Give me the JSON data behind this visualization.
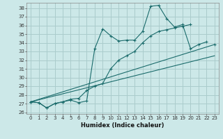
{
  "xlabel": "Humidex (Indice chaleur)",
  "bg_color": "#cce8e8",
  "grid_color": "#aacccc",
  "line_color": "#1a6b6b",
  "xlim": [
    -0.5,
    23.5
  ],
  "ylim": [
    25.8,
    38.6
  ],
  "xticks": [
    0,
    1,
    2,
    3,
    4,
    5,
    6,
    7,
    8,
    9,
    10,
    11,
    12,
    13,
    14,
    15,
    16,
    17,
    18,
    19,
    20,
    21,
    22,
    23
  ],
  "yticks": [
    26,
    27,
    28,
    29,
    30,
    31,
    32,
    33,
    34,
    35,
    36,
    37,
    38
  ],
  "series": [
    {
      "x": [
        0,
        1,
        2,
        3,
        4,
        5,
        6,
        7,
        8,
        9,
        10,
        11,
        12,
        13,
        14,
        15,
        16,
        17,
        18,
        19,
        20,
        21,
        22
      ],
      "y": [
        27.2,
        27.1,
        26.5,
        27.0,
        27.2,
        27.4,
        27.1,
        27.3,
        33.3,
        35.6,
        34.8,
        34.2,
        34.3,
        34.3,
        35.3,
        38.2,
        38.3,
        36.8,
        35.8,
        36.1,
        33.3,
        33.8,
        34.1
      ],
      "marker": true
    },
    {
      "x": [
        0,
        1,
        2,
        3,
        4,
        5,
        6,
        7,
        8,
        9,
        10,
        11,
        12,
        13,
        14,
        15,
        16,
        17,
        18,
        19,
        20
      ],
      "y": [
        27.2,
        27.1,
        26.5,
        27.0,
        27.2,
        27.5,
        27.6,
        28.5,
        29.0,
        29.3,
        31.0,
        32.0,
        32.5,
        33.0,
        34.0,
        34.8,
        35.3,
        35.5,
        35.7,
        35.9,
        36.1
      ],
      "marker": true
    },
    {
      "x": [
        0,
        23
      ],
      "y": [
        27.2,
        33.8
      ],
      "marker": true
    },
    {
      "x": [
        0,
        23
      ],
      "y": [
        27.2,
        32.5
      ],
      "marker": false
    }
  ]
}
